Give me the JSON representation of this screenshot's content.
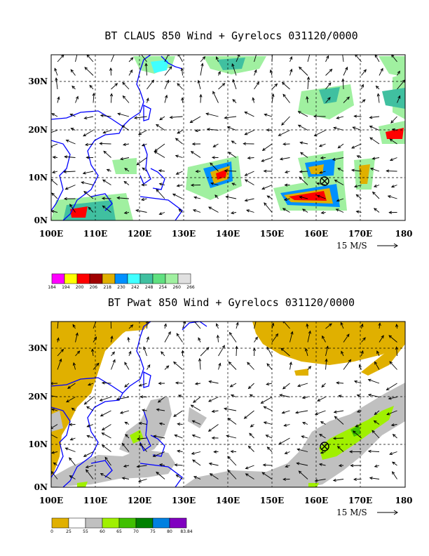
{
  "panel1": {
    "title": "BT CLAUS 850 Wind + Gyrelocs 031120/0000",
    "x_ticks": [
      "100E",
      "110E",
      "120E",
      "130E",
      "140E",
      "150E",
      "160E",
      "170E",
      "180"
    ],
    "y_ticks": [
      "30N",
      "20N",
      "10N",
      "0N"
    ],
    "ref_vector": "15 M/S",
    "colorbar": {
      "labels": [
        "184",
        "194",
        "200",
        "206",
        "218",
        "230",
        "242",
        "248",
        "254",
        "260",
        "266"
      ],
      "colors": [
        "#ff00ff",
        "#ffff00",
        "#ff0000",
        "#a00000",
        "#e0b000",
        "#0090ff",
        "#40ffff",
        "#40c0a0",
        "#60e080",
        "#a0f0a0",
        "#e0e0e0"
      ]
    },
    "gyre_location": {
      "lon": 162,
      "lat": 8.5
    }
  },
  "panel2": {
    "title": "BT Pwat 850 Wind + Gyrelocs 031120/0000",
    "x_ticks": [
      "100E",
      "110E",
      "120E",
      "130E",
      "140E",
      "150E",
      "160E",
      "170E",
      "180"
    ],
    "y_ticks": [
      "30N",
      "20N",
      "10N",
      "0N"
    ],
    "ref_vector": "15 M/S",
    "colorbar": {
      "labels": [
        "0",
        "25",
        "55",
        "60",
        "65",
        "70",
        "75",
        "80",
        "83.84"
      ],
      "colors": [
        "#e0b000",
        "#ffffff",
        "#c0c0c0",
        "#a0f000",
        "#40c000",
        "#008000",
        "#0080e0",
        "#8000c0"
      ]
    },
    "gyre_location": {
      "lon": 161,
      "lat": 8.5
    }
  }
}
